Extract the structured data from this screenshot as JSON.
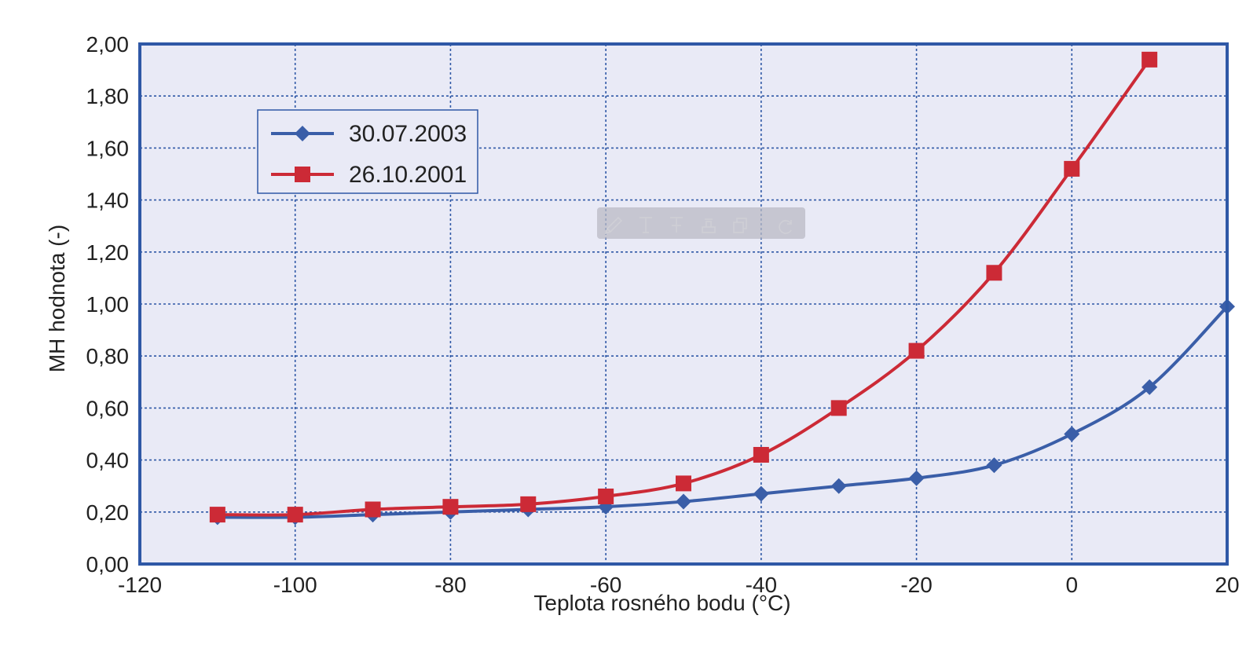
{
  "chart_data": {
    "type": "line",
    "title": "",
    "xlabel": "Teplota rosného bodu (°C)",
    "ylabel": "MH hodnota (-)",
    "xlim": [
      -120,
      20
    ],
    "ylim": [
      0,
      2
    ],
    "x_ticks": [
      -120,
      -100,
      -80,
      -60,
      -40,
      -20,
      0,
      20
    ],
    "x_tick_labels": [
      "-120",
      "-100",
      "-80",
      "-60",
      "-40",
      "-20",
      "0",
      "20"
    ],
    "y_ticks": [
      0,
      0.2,
      0.4,
      0.6,
      0.8,
      1.0,
      1.2,
      1.4,
      1.6,
      1.8,
      2.0
    ],
    "y_tick_labels": [
      "0,00",
      "0,20",
      "0,40",
      "0,60",
      "0,80",
      "1,00",
      "1,20",
      "1,40",
      "1,60",
      "1,80",
      "2,00"
    ],
    "grid": true,
    "legend_position": "top-left",
    "series": [
      {
        "name": "30.07.2003",
        "color": "#3a5ea8",
        "marker": "diamond",
        "x": [
          -110,
          -100,
          -90,
          -80,
          -70,
          -60,
          -50,
          -40,
          -30,
          -20,
          -10,
          0,
          10,
          20
        ],
        "y": [
          0.18,
          0.18,
          0.19,
          0.2,
          0.21,
          0.22,
          0.24,
          0.27,
          0.3,
          0.33,
          0.38,
          0.5,
          0.68,
          0.99
        ]
      },
      {
        "name": "26.10.2001",
        "color": "#cc2a36",
        "marker": "square",
        "x": [
          -110,
          -100,
          -90,
          -80,
          -70,
          -60,
          -50,
          -40,
          -30,
          -20,
          -10,
          0,
          10
        ],
        "y": [
          0.19,
          0.19,
          0.21,
          0.22,
          0.23,
          0.26,
          0.31,
          0.42,
          0.6,
          0.82,
          1.12,
          1.52,
          1.94
        ]
      }
    ],
    "colors": {
      "plot_background": "#e9eaf6",
      "frame": "#2f58a6",
      "grid": "#2f58a6"
    }
  },
  "toolbar": {
    "icons": [
      "pencil-icon",
      "text-icon",
      "strikethrough-text-icon",
      "stamp-icon",
      "copy-icon",
      "rotate-icon"
    ]
  }
}
